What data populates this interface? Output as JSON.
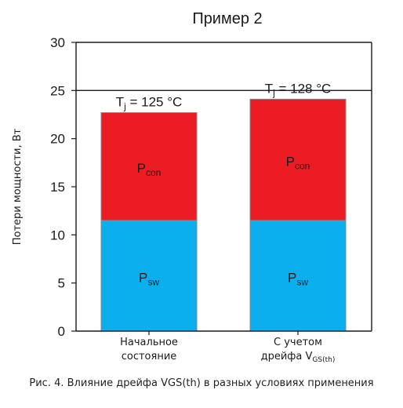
{
  "chart_data": {
    "type": "bar",
    "stacked": true,
    "title": "Пример 2",
    "ylabel": "Потери мощности, Вт",
    "ylim": [
      0,
      30
    ],
    "yticks": [
      0,
      5,
      10,
      15,
      20,
      25,
      30
    ],
    "ytick_labels": [
      "0",
      "5",
      "10",
      "15",
      "20",
      "25",
      "30"
    ],
    "grid": false,
    "categories": [
      {
        "label_lines": [
          "Начальное",
          "состояние"
        ],
        "label_sub": ""
      },
      {
        "label_lines": [
          "С учетом",
          "дрейфа V"
        ],
        "label_sub": "GS(th)"
      }
    ],
    "series": [
      {
        "name_main": "P",
        "name_sub": "sw",
        "color": "#0bafee",
        "values": [
          11.5,
          11.5
        ]
      },
      {
        "name_main": "P",
        "name_sub": "con",
        "color": "#ec1c24",
        "values": [
          11.2,
          12.6
        ]
      }
    ],
    "bar_annotations": [
      {
        "main": "T",
        "sub": "j",
        "rest": " = 125 °C"
      },
      {
        "main": "T",
        "sub": "j",
        "rest": " = 128 °C"
      }
    ],
    "reference_lines": [
      25,
      30
    ]
  },
  "caption": "Рис. 4. Влияние дрейфа VGS(th) в разных условиях применения"
}
